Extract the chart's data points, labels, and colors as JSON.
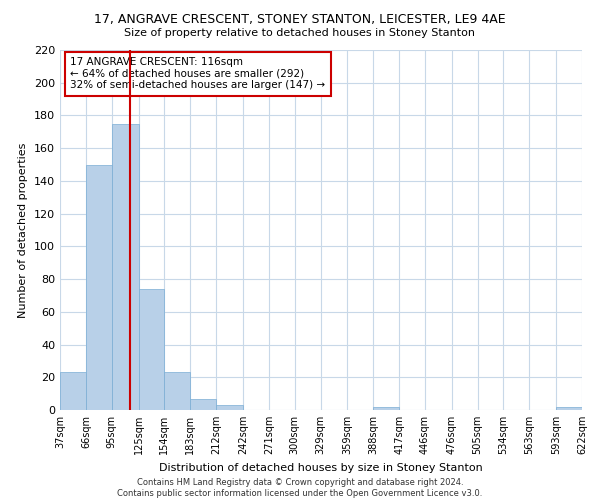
{
  "title": "17, ANGRAVE CRESCENT, STONEY STANTON, LEICESTER, LE9 4AE",
  "subtitle": "Size of property relative to detached houses in Stoney Stanton",
  "xlabel": "Distribution of detached houses by size in Stoney Stanton",
  "ylabel": "Number of detached properties",
  "bar_edges": [
    37,
    66,
    95,
    125,
    154,
    183,
    212,
    242,
    271,
    300,
    329,
    359,
    388,
    417,
    446,
    476,
    505,
    534,
    563,
    593,
    622
  ],
  "bar_heights": [
    23,
    150,
    175,
    74,
    23,
    7,
    3,
    0,
    0,
    0,
    0,
    0,
    2,
    0,
    0,
    0,
    0,
    0,
    0,
    2
  ],
  "bar_color": "#b8d0e8",
  "bar_edge_color": "#7aadd4",
  "property_line_x": 116,
  "annotation_title": "17 ANGRAVE CRESCENT: 116sqm",
  "annotation_line1": "← 64% of detached houses are smaller (292)",
  "annotation_line2": "32% of semi-detached houses are larger (147) →",
  "annotation_box_color": "#ffffff",
  "annotation_box_edge": "#cc0000",
  "vline_color": "#cc0000",
  "ylim": [
    0,
    220
  ],
  "yticks": [
    0,
    20,
    40,
    60,
    80,
    100,
    120,
    140,
    160,
    180,
    200,
    220
  ],
  "tick_labels": [
    "37sqm",
    "66sqm",
    "95sqm",
    "125sqm",
    "154sqm",
    "183sqm",
    "212sqm",
    "242sqm",
    "271sqm",
    "300sqm",
    "329sqm",
    "359sqm",
    "388sqm",
    "417sqm",
    "446sqm",
    "476sqm",
    "505sqm",
    "534sqm",
    "563sqm",
    "593sqm",
    "622sqm"
  ],
  "footer_line1": "Contains HM Land Registry data © Crown copyright and database right 2024.",
  "footer_line2": "Contains public sector information licensed under the Open Government Licence v3.0.",
  "background_color": "#ffffff",
  "grid_color": "#c8d8e8"
}
